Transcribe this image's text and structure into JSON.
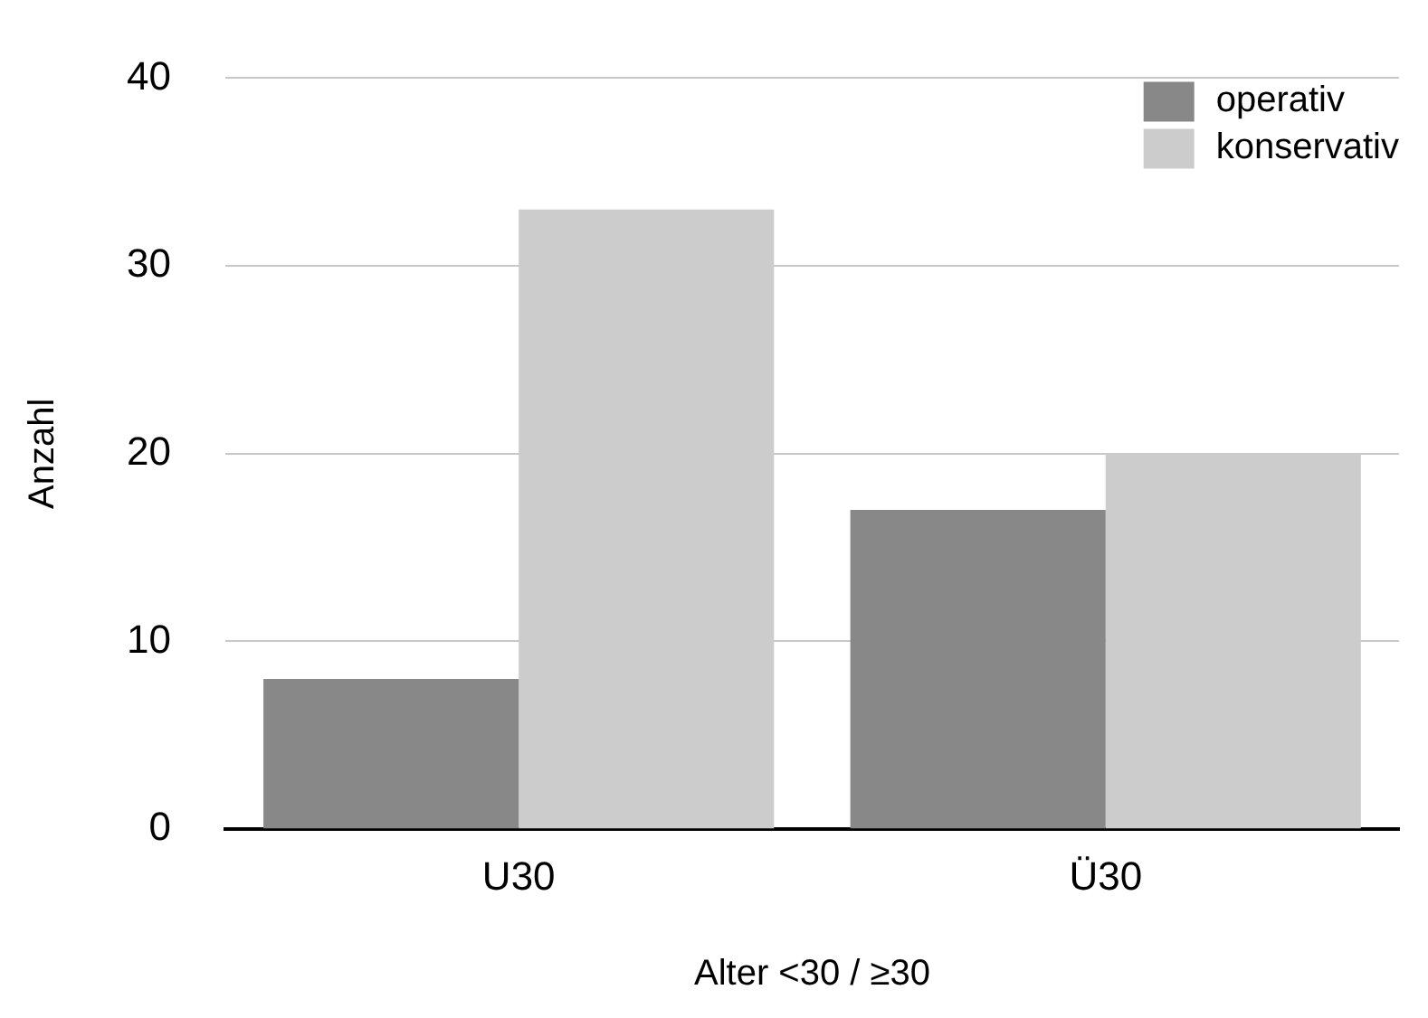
{
  "chart_data": {
    "type": "bar",
    "xlabel": "Alter <30 / ≥30",
    "ylabel": "Anzahl",
    "categories": [
      "U30",
      "Ü30"
    ],
    "series": [
      {
        "name": "operativ",
        "color": "#888888",
        "values": [
          8,
          17
        ]
      },
      {
        "name": "konservativ",
        "color": "#cccccc",
        "values": [
          33,
          20
        ]
      }
    ],
    "ylim": [
      0,
      40
    ],
    "yticks": [
      0,
      10,
      20,
      30,
      40
    ],
    "grid": "y",
    "legend": "top right"
  }
}
